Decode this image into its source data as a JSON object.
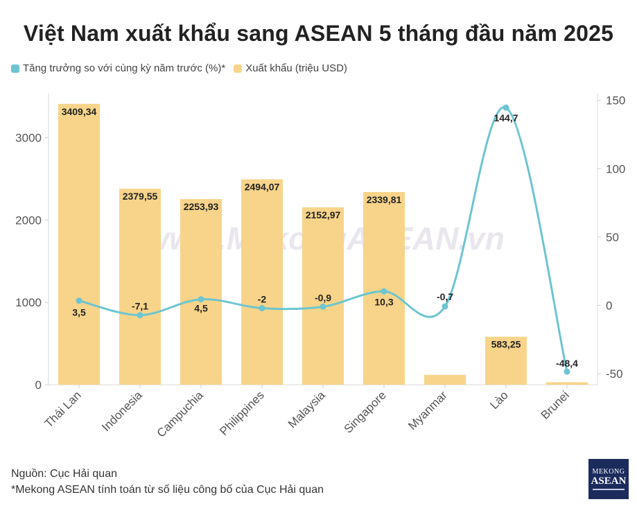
{
  "title": "Việt Nam xuất khẩu sang ASEAN 5 tháng đầu năm 2025",
  "legend": {
    "line_label": "Tăng trưởng so với cùng kỳ năm trước (%)*",
    "bar_label": "Xuất khẩu (triệu USD)"
  },
  "colors": {
    "bar": "#f7d48a",
    "line": "#6cc5d0",
    "logo_bg": "#1b2b5c"
  },
  "watermark": "www.MekongASEAN.vn",
  "footer": {
    "source": "Nguồn: Cục Hải quan",
    "note": "*Mekong ASEAN tính toán từ số liệu công bố của Cục Hải quan"
  },
  "logo": {
    "line1": "MEKONG",
    "line2": "ASEAN"
  },
  "chart_data": {
    "type": "bar",
    "categories": [
      "Thái Lan",
      "Indonesia",
      "Campuchia",
      "Philippines",
      "Malaysia",
      "Singapore",
      "Myanmar",
      "Lào",
      "Brunei"
    ],
    "series": [
      {
        "name": "Xuất khẩu (triệu USD)",
        "type": "bar",
        "axis": "left",
        "values": [
          3409.34,
          2379.55,
          2253.93,
          2494.07,
          2152.97,
          2339.81,
          120,
          583.25,
          30
        ],
        "labels": [
          "3409,34",
          "2379,55",
          "2253,93",
          "2494,07",
          "2152,97",
          "2339,81",
          "",
          "583,25",
          ""
        ]
      },
      {
        "name": "Tăng trưởng so với cùng kỳ năm trước (%)*",
        "type": "line",
        "axis": "right",
        "values": [
          3.5,
          -7.1,
          4.5,
          -2,
          -0.9,
          10.3,
          -0.7,
          144.7,
          -48.4
        ],
        "labels": [
          "3,5",
          "-7,1",
          "4,5",
          "-2",
          "-0,9",
          "10,3",
          "-0,7",
          "144,7",
          "-48,4"
        ]
      }
    ],
    "left_axis": {
      "ticks": [
        0,
        1000,
        2000,
        3000
      ],
      "ylim": [
        0,
        3450
      ]
    },
    "right_axis": {
      "ticks": [
        -50,
        0,
        50,
        100,
        150
      ],
      "ylim": [
        -58,
        160
      ]
    },
    "grid": false,
    "legend_position": "top-left"
  }
}
